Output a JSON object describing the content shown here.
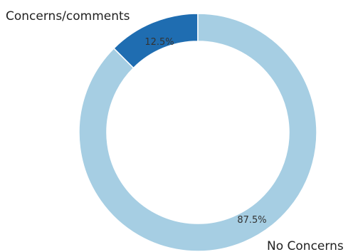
{
  "chart_data": {
    "type": "pie",
    "style": "donut",
    "categories": [
      "Concerns/comments",
      "No Concerns"
    ],
    "values": [
      12.5,
      87.5
    ],
    "value_labels": [
      "12.5%",
      "87.5%"
    ],
    "colors": [
      "#1f6db1",
      "#a6cee3"
    ],
    "title": "",
    "legend": "none"
  }
}
